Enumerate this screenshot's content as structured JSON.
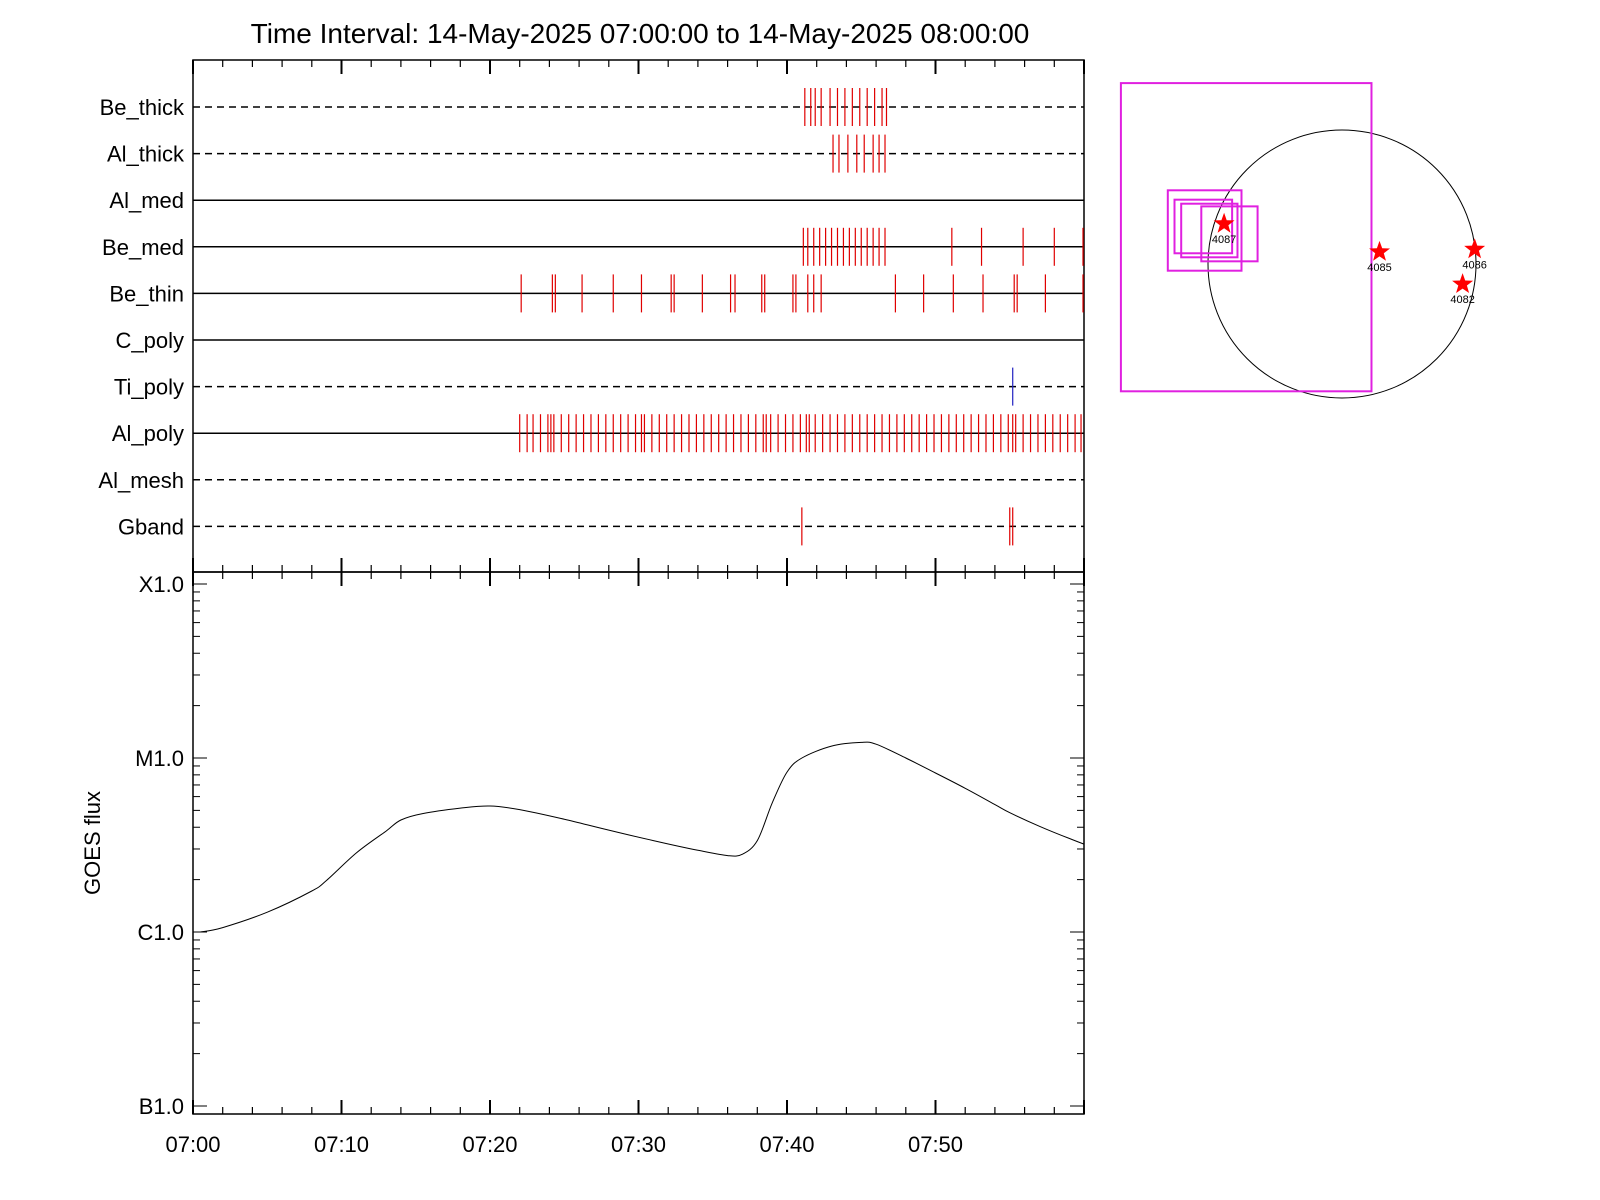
{
  "title": "Time Interval: 14-May-2025 07:00:00 to 14-May-2025 08:00:00",
  "colors": {
    "event": "#e00000",
    "ti_event": "#2020c0",
    "fov": "#e020e0",
    "ar_marker": "#ff0000",
    "curve": "#000000"
  },
  "chart_data": [
    {
      "type": "timeline",
      "x_range_minutes": [
        0,
        60
      ],
      "time_origin": "14-May-2025 07:00:00",
      "rows": [
        {
          "label": "Be_thick",
          "style": "dashed",
          "color": "#e00000",
          "events": [
            41.2,
            41.6,
            41.9,
            42.3,
            42.9,
            43.4,
            43.9,
            44.4,
            44.9,
            45.4,
            45.9,
            46.4,
            46.7
          ]
        },
        {
          "label": "Al_thick",
          "style": "dashed",
          "color": "#e00000",
          "events": [
            43.1,
            43.5,
            44.1,
            44.7,
            45.2,
            45.8,
            46.2,
            46.6
          ]
        },
        {
          "label": "Al_med",
          "style": "solid",
          "color": "#e00000",
          "events": []
        },
        {
          "label": "Be_med",
          "style": "solid",
          "color": "#e00000",
          "events": [
            41.1,
            41.4,
            41.8,
            42.2,
            42.6,
            43.0,
            43.4,
            43.8,
            44.2,
            44.6,
            45.0,
            45.4,
            45.8,
            46.2,
            46.6,
            51.1,
            53.1,
            55.9,
            58.0,
            60.0
          ]
        },
        {
          "label": "Be_thin",
          "style": "solid",
          "color": "#e00000",
          "events": [
            22.1,
            24.2,
            24.4,
            26.2,
            28.3,
            30.2,
            32.2,
            32.4,
            34.3,
            36.2,
            36.5,
            38.3,
            38.5,
            40.4,
            40.6,
            41.4,
            41.8,
            42.3,
            47.3,
            49.2,
            51.2,
            53.2,
            55.3,
            55.5,
            57.4,
            60.0
          ]
        },
        {
          "label": "C_poly",
          "style": "solid",
          "color": "#e00000",
          "events": []
        },
        {
          "label": "Ti_poly",
          "style": "dashed",
          "color": "#2020c0",
          "events": [
            55.2
          ]
        },
        {
          "label": "Al_poly",
          "style": "solid",
          "color": "#e00000",
          "events": [
            22.0,
            22.5,
            22.9,
            23.4,
            23.9,
            24.1,
            24.3,
            24.8,
            25.3,
            25.8,
            26.3,
            26.8,
            27.3,
            27.8,
            28.3,
            28.8,
            29.3,
            29.8,
            30.2,
            30.4,
            30.9,
            31.4,
            31.9,
            32.4,
            32.9,
            33.4,
            33.9,
            34.4,
            34.9,
            35.4,
            35.9,
            36.4,
            36.9,
            37.4,
            37.9,
            38.4,
            38.6,
            38.9,
            39.4,
            39.9,
            40.4,
            40.9,
            41.3,
            41.5,
            41.9,
            42.4,
            42.9,
            43.4,
            43.9,
            44.4,
            44.9,
            45.4,
            45.9,
            46.4,
            46.9,
            47.4,
            47.9,
            48.4,
            48.9,
            49.4,
            49.9,
            50.4,
            50.9,
            51.4,
            51.9,
            52.4,
            52.9,
            53.4,
            53.9,
            54.4,
            54.9,
            55.2,
            55.4,
            55.9,
            56.4,
            56.9,
            57.4,
            57.9,
            58.4,
            58.9,
            59.4,
            59.8
          ]
        },
        {
          "label": "Al_mesh",
          "style": "dashed",
          "color": "#e00000",
          "events": []
        },
        {
          "label": "Gband",
          "style": "dashed",
          "color": "#e00000",
          "events": [
            41.0,
            55.0,
            55.2
          ]
        }
      ]
    },
    {
      "type": "line",
      "ylabel": "GOES flux",
      "y_scale": "log",
      "y_ticks": [
        {
          "label": "B1.0",
          "value": 1e-07
        },
        {
          "label": "C1.0",
          "value": 1e-06
        },
        {
          "label": "M1.0",
          "value": 1e-05
        },
        {
          "label": "X1.0",
          "value": 0.0001
        }
      ],
      "ylim": [
        1e-07,
        0.0001
      ],
      "xlim_minutes": [
        0,
        60
      ],
      "x_tick_labels": [
        "07:00",
        "07:10",
        "07:20",
        "07:30",
        "07:40",
        "07:50"
      ],
      "x_tick_minutes": [
        0,
        10,
        20,
        30,
        40,
        50
      ],
      "series": [
        {
          "color": "#000000",
          "points": [
            [
              0.5,
              1e-06
            ],
            [
              2,
              1.06e-06
            ],
            [
              5,
              1.3e-06
            ],
            [
              8,
              1.72e-06
            ],
            [
              9,
              1.98e-06
            ],
            [
              11,
              2.85e-06
            ],
            [
              13,
              3.8e-06
            ],
            [
              14,
              4.4e-06
            ],
            [
              15.5,
              4.8e-06
            ],
            [
              18,
              5.15e-06
            ],
            [
              20,
              5.3e-06
            ],
            [
              22,
              5.05e-06
            ],
            [
              25,
              4.45e-06
            ],
            [
              28,
              3.85e-06
            ],
            [
              31,
              3.35e-06
            ],
            [
              34,
              2.95e-06
            ],
            [
              36,
              2.75e-06
            ],
            [
              37,
              2.8e-06
            ],
            [
              38,
              3.35e-06
            ],
            [
              39,
              5.5e-06
            ],
            [
              40,
              8.3e-06
            ],
            [
              41,
              1e-05
            ],
            [
              43,
              1.17e-05
            ],
            [
              45,
              1.23e-05
            ],
            [
              46,
              1.2e-05
            ],
            [
              48,
              1e-05
            ],
            [
              50,
              8.2e-06
            ],
            [
              52,
              6.7e-06
            ],
            [
              54,
              5.4e-06
            ],
            [
              55,
              4.85e-06
            ],
            [
              57,
              4.05e-06
            ],
            [
              59,
              3.45e-06
            ],
            [
              60,
              3.2e-06
            ]
          ]
        }
      ]
    },
    {
      "type": "scatter",
      "name": "solar_disk_map",
      "points": [
        {
          "label": "4087",
          "pos": [
            -0.88,
            0.3
          ]
        },
        {
          "label": "4085",
          "pos": [
            0.28,
            0.09
          ]
        },
        {
          "label": "4086",
          "pos": [
            0.99,
            0.11
          ]
        },
        {
          "label": "4082",
          "pos": [
            0.9,
            -0.15
          ]
        }
      ],
      "fov_boxes": [
        {
          "x": [
            -1.3,
            -0.75
          ],
          "y": [
            -0.05,
            0.55
          ]
        },
        {
          "x": [
            -1.25,
            -0.82
          ],
          "y": [
            0.08,
            0.48
          ]
        },
        {
          "x": [
            -1.2,
            -0.78
          ],
          "y": [
            0.05,
            0.45
          ]
        },
        {
          "x": [
            -1.05,
            -0.63
          ],
          "y": [
            0.02,
            0.43
          ]
        },
        {
          "x": [
            -1.65,
            0.22
          ],
          "y": [
            -0.95,
            1.35
          ]
        }
      ]
    }
  ]
}
